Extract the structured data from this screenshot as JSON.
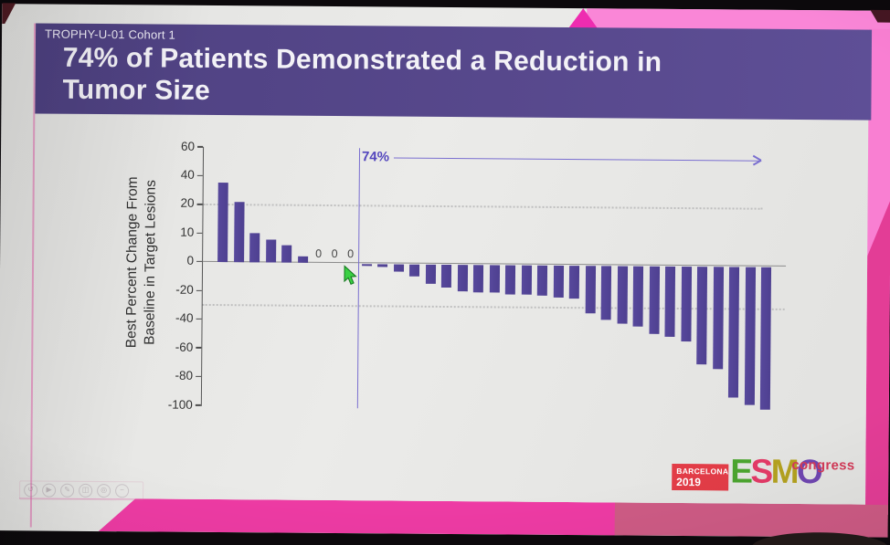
{
  "slide": {
    "eyebrow": "TROPHY-U-01 Cohort 1",
    "title_line1": "74% of Patients Demonstrated a Reduction in",
    "title_line2": "Tumor Size"
  },
  "chart_data": {
    "type": "bar",
    "subtype": "waterfall",
    "title": "74% of Patients Demonstrated a Reduction in Tumor Size",
    "ylabel_line1": "Best Percent Change From",
    "ylabel_line2": "Baseline in Target Lesions",
    "ylim": [
      60,
      -100
    ],
    "y_tick_values": [
      60,
      40,
      20,
      10,
      0,
      -20,
      -40,
      -60,
      -80,
      -100
    ],
    "y_tick_labels": [
      "60",
      "40",
      "20",
      "10",
      "0",
      "-20",
      "-40",
      "-60",
      "-80",
      "-100"
    ],
    "reference_lines": [
      20,
      -30
    ],
    "grid": "dotted threshold lines at +20 and -30 only",
    "legend": "none",
    "bar_color": "#57489c",
    "values": [
      35,
      22,
      10,
      8,
      6,
      2,
      0,
      0,
      0,
      -2,
      -3,
      -6,
      -9,
      -14,
      -17,
      -19,
      -20,
      -20,
      -21,
      -21,
      -22,
      -23,
      -24,
      -34,
      -38,
      -41,
      -43,
      -48,
      -50,
      -53,
      -69,
      -72,
      -92,
      -97,
      -100
    ],
    "zero_value_labels": [
      "0",
      "0",
      "0"
    ],
    "annotation": {
      "label": "74%",
      "label_color": "#5346bd",
      "line_color": "#7a6fd0"
    }
  },
  "cursor": {
    "color": "#3ad043"
  },
  "watermark_toolbar": {
    "icons": [
      {
        "name": "undo-icon",
        "glyph": "↺"
      },
      {
        "name": "play-icon",
        "glyph": "▶"
      },
      {
        "name": "pencil-icon",
        "glyph": "✎"
      },
      {
        "name": "camera-icon",
        "glyph": "◫"
      },
      {
        "name": "record-icon",
        "glyph": "◎"
      },
      {
        "name": "minus-icon",
        "glyph": "−"
      }
    ]
  },
  "logo": {
    "venue_line1": "BARCELONA",
    "venue_line2": "2019",
    "venue_bg": "#e23c47",
    "letters": [
      {
        "char": "E",
        "color": "#4ba42f"
      },
      {
        "char": "S",
        "color": "#e23a66"
      },
      {
        "char": "M",
        "color": "#b3a11f"
      },
      {
        "char": "O",
        "color": "#6f46b0"
      }
    ],
    "congress": "congress",
    "congress_color": "#d23a58"
  },
  "colors": {
    "header_purple": "#56488c",
    "screen_white": "#e7e7e5",
    "stage_pink": "#fa86d7",
    "stage_triangle": "#ee2cb0",
    "stage_right_dark": "#e33d96",
    "band_magenta": "#ee3ba4",
    "band_rose": "#ce5b85",
    "maroon": "#4f1a22"
  }
}
